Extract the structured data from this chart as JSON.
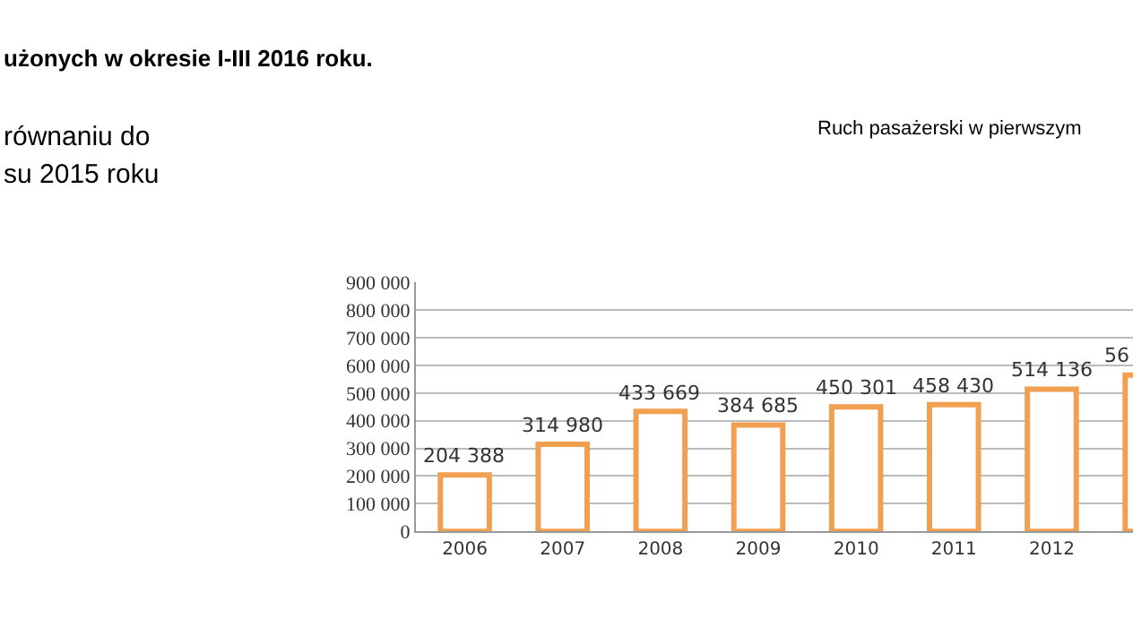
{
  "chart_data": {
    "type": "bar",
    "title": "Ruch pasażerski w pierwszym",
    "annotations": [
      "użonych w okresie I-III 2016 roku.",
      "równaniu do",
      "su 2015 roku",
      "56"
    ],
    "categories": [
      "2006",
      "2007",
      "2008",
      "2009",
      "2010",
      "2011",
      "2012",
      null
    ],
    "values": [
      204388,
      314980,
      433669,
      384685,
      450301,
      458430,
      514136,
      565000
    ],
    "value_labels": [
      "204 388",
      "314 980",
      "433 669",
      "384 685",
      "450 301",
      "458 430",
      "514 136",
      null
    ],
    "color": "#f0a050",
    "ylim": [
      0,
      900000
    ],
    "yticks": [
      {
        "value": 0,
        "label": "0"
      },
      {
        "value": 100000,
        "label": "100 000"
      },
      {
        "value": 200000,
        "label": "200 000"
      },
      {
        "value": 300000,
        "label": "300 000"
      },
      {
        "value": 400000,
        "label": "400 000"
      },
      {
        "value": 500000,
        "label": "500 000"
      },
      {
        "value": 600000,
        "label": "600 000"
      },
      {
        "value": 700000,
        "label": "700 000"
      },
      {
        "value": 800000,
        "label": "800 000"
      },
      {
        "value": 900000,
        "label": "900 000"
      }
    ],
    "grid": "y",
    "legend": false
  }
}
